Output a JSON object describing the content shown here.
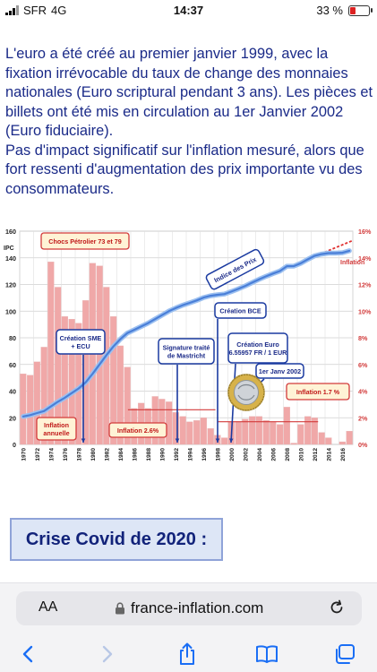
{
  "status_bar": {
    "carrier": "SFR",
    "network": "4G",
    "time": "14:37",
    "battery": "33 %"
  },
  "article": {
    "paragraph1": "L'euro a été créé au premier janvier 1999, avec la fixation irrévocable du taux de change des monnaies nationales (Euro scriptural pendant 3 ans). Les pièces et billets ont été mis en circulation au 1er Janvier 2002 (Euro fiduciaire).",
    "paragraph2": "Pas d'impact significatif sur l'inflation mesuré, alors que fort ressenti d'augmentation des prix importante vu des consommateurs."
  },
  "chart_data": {
    "type": "bar",
    "left_axis_label": "IPC",
    "right_axis_label": "Inflation",
    "left_ticks": [
      "0",
      "20",
      "40",
      "60",
      "80",
      "100",
      "120",
      "140",
      "160"
    ],
    "right_ticks": [
      "0%",
      "2%",
      "4%",
      "6%",
      "8%",
      "10%",
      "12%",
      "14%",
      "16%"
    ],
    "ylim_left": [
      0,
      160
    ],
    "ylim_right": [
      0,
      16
    ],
    "years": [
      1970,
      1971,
      1972,
      1973,
      1974,
      1975,
      1976,
      1977,
      1978,
      1979,
      1980,
      1981,
      1982,
      1983,
      1984,
      1985,
      1986,
      1987,
      1988,
      1989,
      1990,
      1991,
      1992,
      1993,
      1994,
      1995,
      1996,
      1997,
      1998,
      1999,
      2000,
      2001,
      2002,
      2003,
      2004,
      2005,
      2006,
      2007,
      2008,
      2009,
      2010,
      2011,
      2012,
      2013,
      2014,
      2015,
      2016,
      2017
    ],
    "x_tick_labels": [
      "1970",
      "1972",
      "1974",
      "1976",
      "1978",
      "1980",
      "1982",
      "1984",
      "1986",
      "1988",
      "1990",
      "1992",
      "1994",
      "1996",
      "1998",
      "2000",
      "2002",
      "2004",
      "2006",
      "2008",
      "2010",
      "2012",
      "2014",
      "2016"
    ],
    "inflation": [
      5.3,
      5.2,
      6.2,
      7.3,
      13.7,
      11.8,
      9.6,
      9.4,
      9.1,
      10.8,
      13.6,
      13.4,
      11.8,
      9.6,
      7.4,
      5.8,
      2.7,
      3.1,
      2.7,
      3.6,
      3.4,
      3.2,
      2.4,
      2.1,
      1.7,
      1.8,
      2.0,
      1.2,
      0.7,
      0.5,
      1.7,
      1.7,
      1.9,
      2.1,
      2.1,
      1.8,
      1.7,
      1.5,
      2.8,
      0.1,
      1.5,
      2.1,
      2.0,
      0.9,
      0.5,
      0.0,
      0.2,
      1.0
    ],
    "ipc": [
      21,
      22,
      23.5,
      25,
      28.5,
      32,
      35,
      38.5,
      42,
      46.5,
      53,
      60,
      67,
      73.5,
      79,
      83.5,
      86,
      88.5,
      91,
      94,
      97,
      100,
      102.4,
      104.5,
      106.2,
      108,
      110.2,
      111.5,
      112.3,
      112.8,
      114.7,
      116.7,
      118.9,
      121.4,
      123.9,
      126.1,
      128.2,
      130.1,
      133.7,
      133.8,
      135.9,
      138.8,
      141.5,
      142.8,
      143.5,
      143.5,
      143.8,
      145.3
    ],
    "series": [
      {
        "name": "Indice des Prix",
        "color": "#4a7fd8"
      },
      {
        "name": "Inflation",
        "color": "#f0a8a8"
      }
    ],
    "trend_color": "#e03030",
    "annotations": {
      "chocs": "Chocs Pétrolier 73 et 79",
      "sme": "Création SME\n+ ECU",
      "indice": "Indice des Prix",
      "inflation_annuelle": "Inflation\nannuelle",
      "inflation_26": "Inflation 2.6%",
      "maastricht": "Signature traité\nde Mastricht",
      "bce": "Création BCE",
      "euro": "Création Euro\n6.55957  FR / 1 EUR",
      "janv2002": "1er Janv 2002",
      "inflation_17": "Inflation  1.7 %"
    }
  },
  "covid_banner": "Crise Covid de 2020 :",
  "browser": {
    "aa": "AA",
    "url": "france-inflation.com"
  }
}
